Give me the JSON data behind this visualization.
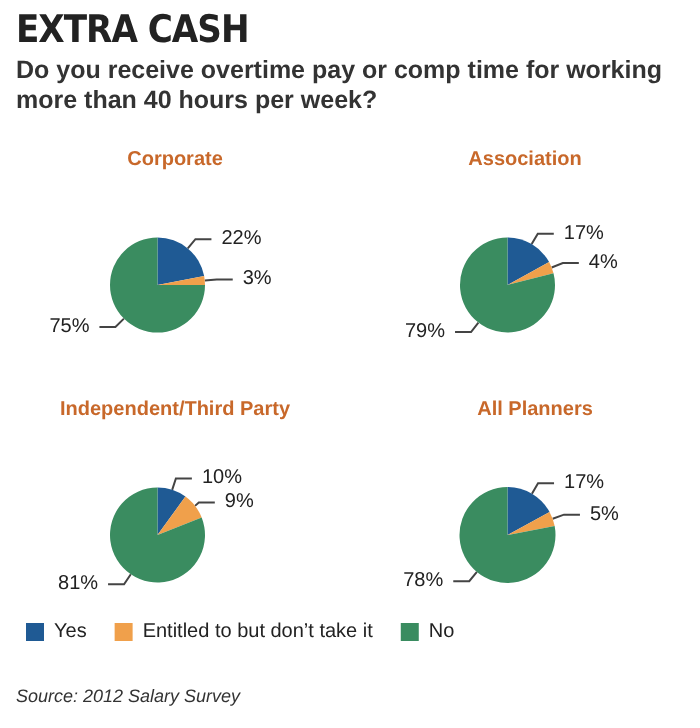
{
  "chart_data": [
    {
      "type": "other",
      "title": "EXTRA CASH",
      "subtitle": "Do you receive overtime pay or comp time for working more than 40 hours per week?",
      "annotations": [
        "Source: 2012 Salary Survey"
      ]
    },
    {
      "type": "pie",
      "title": "Corporate",
      "categories": [
        null,
        null,
        null
      ],
      "values": [
        22,
        3,
        75
      ],
      "value_labels": [
        "22%",
        "3%",
        "75%"
      ],
      "colors": [
        "#1f5a94",
        "#f0a04b",
        "#3a8c60"
      ],
      "legend": false
    },
    {
      "type": "pie",
      "title": "Association",
      "categories": [
        null,
        null,
        null
      ],
      "values": [
        17,
        4,
        79
      ],
      "value_labels": [
        "17%",
        "4%",
        "79%"
      ],
      "colors": [
        "#1f5a94",
        "#f0a04b",
        "#3a8c60"
      ],
      "legend": false
    },
    {
      "type": "pie",
      "title": "Independent/Third Party",
      "categories": [
        null,
        null,
        null
      ],
      "values": [
        10,
        9,
        81
      ],
      "value_labels": [
        "10%",
        "9%",
        "81%"
      ],
      "colors": [
        "#1f5a94",
        "#f0a04b",
        "#3a8c60"
      ],
      "legend": false
    },
    {
      "type": "pie",
      "title": "All Planners",
      "categories": [
        "Yes",
        "Entitled to but don’t take it",
        "No"
      ],
      "values": [
        17,
        5,
        78
      ],
      "value_labels": [
        "17%",
        "5%",
        "78%"
      ],
      "colors": [
        "#1f5a94",
        "#f0a04b",
        "#3a8c60"
      ],
      "legend": "bottom"
    }
  ]
}
